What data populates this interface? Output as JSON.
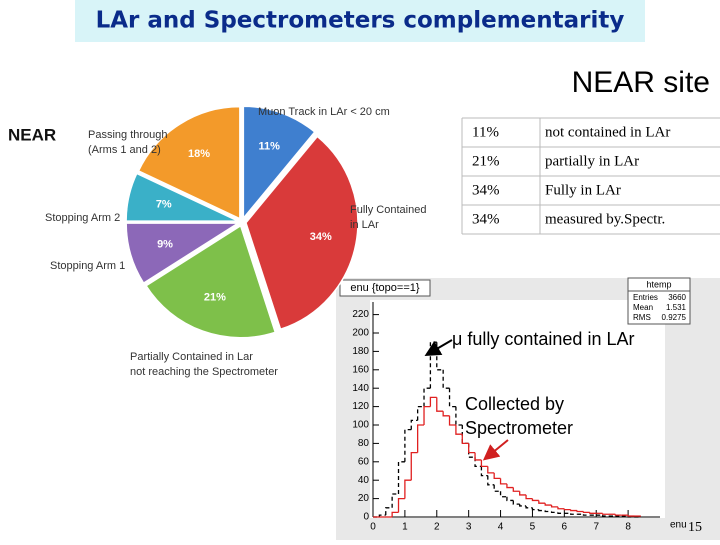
{
  "header": {
    "title": "LAr and Spectrometers complementarity",
    "subtitle": "NEAR site"
  },
  "pie": {
    "label": "NEAR",
    "values": [
      11,
      34,
      21,
      9,
      7,
      18
    ],
    "value_labels": [
      "11%",
      "34%",
      "21%",
      "9%",
      "7%",
      "18%"
    ],
    "colors": [
      "#3f7fcf",
      "#d93a3a",
      "#7ec04a",
      "#8c68b8",
      "#3ab0c8",
      "#f39a2a"
    ],
    "labels": [
      [
        "Muon Track in LAr < 20 cm"
      ],
      [
        "Fully Contained",
        "in LAr"
      ],
      [
        "Partially Contained in Lar",
        "not reaching  the Spectrometer"
      ],
      [
        "Stopping Arm 1"
      ],
      [
        "Stopping Arm 2"
      ],
      [
        "Passing through",
        "(Arms 1 and 2)"
      ]
    ]
  },
  "table": {
    "rows": [
      [
        "11%",
        "not contained in LAr"
      ],
      [
        "21%",
        "partially in LAr"
      ],
      [
        "34%",
        "Fully in LAr"
      ],
      [
        "34%",
        "measured by.Spectr."
      ]
    ]
  },
  "histogram": {
    "title": "enu {topo==1}",
    "xlabel": "enu",
    "stats": {
      "name": "htemp",
      "rows": [
        [
          "Entries",
          "3660"
        ],
        [
          "Mean",
          "1.531"
        ],
        [
          "RMS",
          "0.9275"
        ]
      ]
    },
    "bins": [
      0,
      0.2,
      0.4,
      0.6,
      0.8,
      1,
      1.2,
      1.4,
      1.6,
      1.8,
      2,
      2.2,
      2.4,
      2.6,
      2.8,
      3,
      3.2,
      3.4,
      3.6,
      3.8,
      4,
      4.2,
      4.4,
      4.6,
      4.8,
      5,
      5.2,
      5.4,
      5.6,
      5.8,
      6,
      6.2,
      6.4,
      6.6,
      6.8,
      7,
      7.2,
      7.4,
      7.6,
      7.8,
      8,
      8.2,
      8.4
    ],
    "series": [
      {
        "color": "#000000",
        "values": [
          0,
          2,
          10,
          25,
          60,
          95,
          105,
          120,
          140,
          190,
          160,
          140,
          120,
          100,
          80,
          65,
          55,
          45,
          35,
          28,
          22,
          18,
          14,
          12,
          10,
          8,
          7,
          6,
          5,
          4,
          4,
          3,
          3,
          2,
          2,
          2,
          1,
          1,
          1,
          1,
          0,
          0
        ]
      },
      {
        "color": "#e02020",
        "values": [
          0,
          0,
          0,
          5,
          20,
          40,
          70,
          100,
          120,
          130,
          115,
          110,
          100,
          90,
          80,
          70,
          62,
          55,
          48,
          42,
          36,
          32,
          28,
          24,
          20,
          18,
          15,
          13,
          11,
          9,
          8,
          7,
          6,
          5,
          4,
          4,
          3,
          3,
          2,
          2,
          1,
          1
        ]
      }
    ],
    "xlim": [
      0,
      9
    ],
    "ylim": [
      0,
      225
    ],
    "xticks": [
      0,
      1,
      2,
      3,
      4,
      5,
      6,
      7,
      8
    ],
    "yticks": [
      0,
      20,
      40,
      60,
      80,
      100,
      120,
      140,
      160,
      180,
      200,
      220
    ],
    "annotations": [
      "μ fully contained in LAr",
      [
        "Collected by",
        "Spectrometer"
      ]
    ]
  },
  "page_number": "15"
}
